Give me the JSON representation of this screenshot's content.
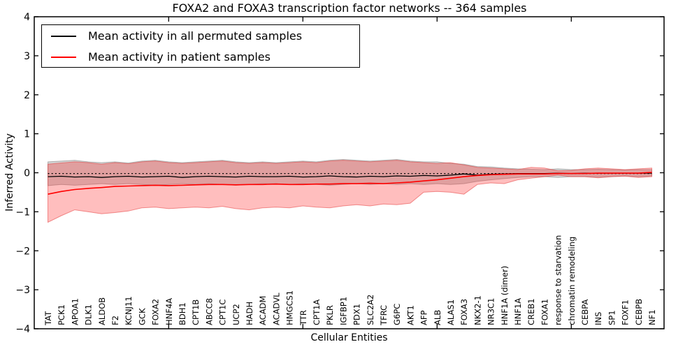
{
  "figure": {
    "title": "FOXA2 and FOXA3 transcription factor networks -- 364 samples",
    "xlabel": "Cellular Entities",
    "ylabel": "Inferred Activity"
  },
  "legend": {
    "position": "upper left",
    "entries": [
      {
        "label": "Mean activity in all permuted samples",
        "color": "#000000"
      },
      {
        "label": "Mean activity in patient samples",
        "color": "#ff0000"
      }
    ]
  },
  "chart_data": {
    "type": "line",
    "title": "FOXA2 and FOXA3 transcription factor networks -- 364 samples",
    "xlabel": "Cellular Entities",
    "ylabel": "Inferred Activity",
    "ylim": [
      -4,
      4
    ],
    "ytick_values": [
      4,
      3,
      2,
      1,
      0,
      -1,
      -2,
      -3,
      -4
    ],
    "ytick_labels": [
      "4",
      "3",
      "2",
      "1",
      "0",
      "−1",
      "−2",
      "−3",
      "−4"
    ],
    "grid": false,
    "legend_position": "upper left",
    "categories": [
      "TAT",
      "PCK1",
      "APOA1",
      "DLK1",
      "ALDOB",
      "F2",
      "KCNJ11",
      "GCK",
      "FOXA2",
      "HNF4A",
      "BDH1",
      "CPT1B",
      "ABCC8",
      "CPT1C",
      "UCP2",
      "HADH",
      "ACADM",
      "ACADVL",
      "HMGCS1",
      "TTR",
      "CPT1A",
      "PKLR",
      "IGFBP1",
      "PDX1",
      "SLC2A2",
      "TFRC",
      "G6PC",
      "AKT1",
      "AFP",
      "ALB",
      "ALAS1",
      "FOXA3",
      "NKX2-1",
      "NR3C1",
      "HNF1A (dimer)",
      "HNF1A",
      "CREB1",
      "FOXA1",
      "response to starvation",
      "chromatin remodeling",
      "CEBPA",
      "INS",
      "SP1",
      "FOXF1",
      "CEBPB",
      "NF1"
    ],
    "series": [
      {
        "name": "Mean activity in all permuted samples",
        "color": "#000000",
        "style": "solid",
        "values": [
          -0.1,
          -0.09,
          -0.11,
          -0.1,
          -0.12,
          -0.1,
          -0.09,
          -0.11,
          -0.1,
          -0.09,
          -0.12,
          -0.1,
          -0.09,
          -0.1,
          -0.11,
          -0.09,
          -0.1,
          -0.1,
          -0.09,
          -0.11,
          -0.1,
          -0.08,
          -0.1,
          -0.11,
          -0.09,
          -0.1,
          -0.08,
          -0.09,
          -0.07,
          -0.08,
          -0.06,
          -0.03,
          -0.06,
          -0.04,
          -0.03,
          -0.02,
          -0.02,
          -0.02,
          -0.01,
          -0.02,
          -0.01,
          -0.01,
          -0.01,
          -0.01,
          -0.01,
          -0.01
        ]
      },
      {
        "name": "Permuted samples reference (dotted)",
        "color": "#000000",
        "style": "dotted",
        "values": [
          -0.02,
          -0.02,
          -0.02,
          -0.02,
          -0.02,
          -0.02,
          -0.02,
          -0.02,
          -0.02,
          -0.02,
          -0.02,
          -0.02,
          -0.02,
          -0.02,
          -0.02,
          -0.02,
          -0.02,
          -0.02,
          -0.02,
          -0.02,
          -0.02,
          -0.02,
          -0.02,
          -0.02,
          -0.02,
          -0.02,
          -0.02,
          -0.02,
          -0.02,
          -0.02,
          -0.02,
          -0.02,
          -0.02,
          -0.02,
          -0.02,
          -0.02,
          -0.02,
          -0.02,
          -0.02,
          -0.02,
          -0.02,
          -0.02,
          -0.02,
          -0.02,
          -0.02,
          -0.02
        ]
      },
      {
        "name": "Mean activity in patient samples",
        "color": "#ff0000",
        "style": "solid",
        "values": [
          -0.55,
          -0.48,
          -0.43,
          -0.4,
          -0.38,
          -0.35,
          -0.34,
          -0.33,
          -0.32,
          -0.33,
          -0.32,
          -0.31,
          -0.3,
          -0.3,
          -0.31,
          -0.3,
          -0.3,
          -0.29,
          -0.3,
          -0.3,
          -0.29,
          -0.29,
          -0.28,
          -0.28,
          -0.27,
          -0.28,
          -0.26,
          -0.24,
          -0.21,
          -0.18,
          -0.14,
          -0.1,
          -0.07,
          -0.05,
          -0.04,
          -0.03,
          -0.03,
          -0.03,
          -0.02,
          -0.02,
          -0.02,
          -0.01,
          -0.01,
          -0.01,
          -0.01,
          0.01
        ]
      }
    ],
    "bands": [
      {
        "name": "Permuted samples range",
        "fill": "rgba(140,140,140,0.38)",
        "edge": "rgba(120,120,120,0.5)",
        "upper": [
          0.28,
          0.3,
          0.32,
          0.28,
          0.26,
          0.28,
          0.25,
          0.3,
          0.32,
          0.28,
          0.26,
          0.28,
          0.3,
          0.32,
          0.28,
          0.26,
          0.28,
          0.26,
          0.28,
          0.3,
          0.28,
          0.32,
          0.34,
          0.32,
          0.3,
          0.32,
          0.34,
          0.3,
          0.28,
          0.28,
          0.24,
          0.22,
          0.16,
          0.15,
          0.12,
          0.1,
          0.09,
          0.08,
          0.1,
          0.08,
          0.08,
          0.09,
          0.08,
          0.07,
          0.08,
          0.08
        ],
        "lower": [
          -0.33,
          -0.3,
          -0.32,
          -0.3,
          -0.28,
          -0.3,
          -0.28,
          -0.3,
          -0.32,
          -0.3,
          -0.28,
          -0.3,
          -0.28,
          -0.3,
          -0.32,
          -0.3,
          -0.28,
          -0.28,
          -0.3,
          -0.28,
          -0.3,
          -0.32,
          -0.3,
          -0.28,
          -0.3,
          -0.28,
          -0.3,
          -0.28,
          -0.3,
          -0.28,
          -0.3,
          -0.28,
          -0.22,
          -0.18,
          -0.15,
          -0.12,
          -0.1,
          -0.1,
          -0.12,
          -0.1,
          -0.1,
          -0.11,
          -0.1,
          -0.08,
          -0.1,
          -0.08
        ]
      },
      {
        "name": "Patient samples range",
        "fill": "rgba(255,40,40,0.30)",
        "edge": "rgba(230,60,60,0.55)",
        "upper": [
          0.22,
          0.25,
          0.28,
          0.26,
          0.22,
          0.26,
          0.23,
          0.28,
          0.3,
          0.26,
          0.24,
          0.26,
          0.28,
          0.3,
          0.26,
          0.24,
          0.26,
          0.24,
          0.26,
          0.28,
          0.26,
          0.3,
          0.32,
          0.3,
          0.28,
          0.3,
          0.32,
          0.28,
          0.26,
          0.24,
          0.26,
          0.2,
          0.14,
          0.12,
          0.1,
          0.08,
          0.14,
          0.12,
          0.05,
          0.06,
          0.1,
          0.12,
          0.1,
          0.08,
          0.1,
          0.12
        ],
        "lower": [
          -1.27,
          -1.1,
          -0.95,
          -1.0,
          -1.05,
          -1.02,
          -0.98,
          -0.9,
          -0.88,
          -0.92,
          -0.9,
          -0.88,
          -0.9,
          -0.86,
          -0.92,
          -0.95,
          -0.9,
          -0.88,
          -0.9,
          -0.85,
          -0.88,
          -0.9,
          -0.85,
          -0.82,
          -0.85,
          -0.8,
          -0.82,
          -0.78,
          -0.5,
          -0.48,
          -0.5,
          -0.55,
          -0.3,
          -0.26,
          -0.28,
          -0.18,
          -0.14,
          -0.1,
          -0.06,
          -0.1,
          -0.1,
          -0.13,
          -0.1,
          -0.09,
          -0.12,
          -0.1
        ]
      }
    ]
  }
}
